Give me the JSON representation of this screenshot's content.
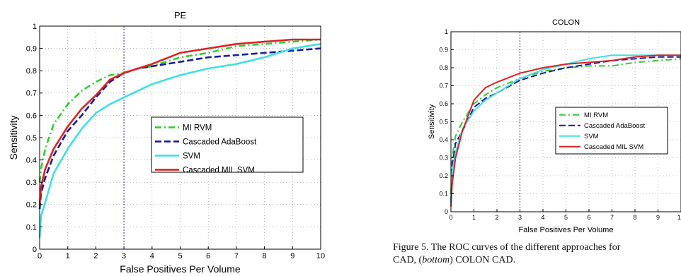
{
  "chart_data": [
    {
      "type": "line",
      "title": "PE",
      "xlabel": "False Positives Per Volume",
      "ylabel": "Sensitivity",
      "xlim": [
        0,
        10
      ],
      "ylim": [
        0,
        1
      ],
      "xticks": [
        "0",
        "1",
        "2",
        "3",
        "4",
        "5",
        "6",
        "7",
        "8",
        "9",
        "10"
      ],
      "yticks": [
        "0",
        "0.1",
        "0.2",
        "0.3",
        "0.4",
        "0.5",
        "0.6",
        "0.7",
        "0.8",
        "0.9",
        "1"
      ],
      "grid": true,
      "vline_x": 3,
      "legend_position": "center-right",
      "series": [
        {
          "name": "MI RVM",
          "color": "#33cc33",
          "style": "dashdot",
          "x": [
            0,
            0.05,
            0.2,
            0.5,
            1,
            1.5,
            2,
            2.5,
            3,
            3.5,
            4,
            5,
            6,
            7,
            8,
            9,
            10
          ],
          "y": [
            0.3,
            0.36,
            0.45,
            0.56,
            0.65,
            0.71,
            0.75,
            0.78,
            0.79,
            0.81,
            0.82,
            0.86,
            0.88,
            0.91,
            0.92,
            0.93,
            0.94
          ]
        },
        {
          "name": "Cascaded AdaBoost",
          "color": "#1a1aa0",
          "style": "dashed",
          "x": [
            0,
            0.05,
            0.2,
            0.5,
            1,
            1.5,
            2,
            2.5,
            3,
            3.5,
            4,
            5,
            6,
            7,
            8,
            9,
            10
          ],
          "y": [
            0.18,
            0.25,
            0.32,
            0.42,
            0.53,
            0.6,
            0.68,
            0.75,
            0.79,
            0.81,
            0.82,
            0.84,
            0.86,
            0.87,
            0.88,
            0.89,
            0.9
          ]
        },
        {
          "name": "SVM",
          "color": "#40e0e0",
          "style": "solid",
          "x": [
            0,
            0.05,
            0.2,
            0.5,
            1,
            1.5,
            2,
            2.5,
            3,
            3.5,
            4,
            5,
            6,
            7,
            8,
            9,
            10
          ],
          "y": [
            0.05,
            0.15,
            0.21,
            0.34,
            0.45,
            0.54,
            0.61,
            0.65,
            0.68,
            0.71,
            0.74,
            0.78,
            0.81,
            0.83,
            0.86,
            0.9,
            0.92
          ]
        },
        {
          "name": "Cascaded MIL SVM",
          "color": "#dd2222",
          "style": "solid",
          "x": [
            0,
            0.05,
            0.2,
            0.5,
            1,
            1.5,
            2,
            2.5,
            3,
            3.5,
            4,
            5,
            6,
            7,
            8,
            9,
            10
          ],
          "y": [
            0.2,
            0.28,
            0.36,
            0.45,
            0.55,
            0.63,
            0.69,
            0.76,
            0.79,
            0.81,
            0.83,
            0.88,
            0.9,
            0.92,
            0.93,
            0.94,
            0.94
          ]
        }
      ]
    },
    {
      "type": "line",
      "title": "COLON",
      "xlabel": "False Positives Per Volume",
      "ylabel": "Sensitivity",
      "xlim": [
        0,
        10
      ],
      "ylim": [
        0,
        1
      ],
      "xticks": [
        "0",
        "1",
        "2",
        "3",
        "4",
        "5",
        "6",
        "7",
        "8",
        "9",
        "10"
      ],
      "yticks": [
        "0",
        "0.1",
        "0.2",
        "0.3",
        "0.4",
        "0.5",
        "0.6",
        "0.7",
        "0.8",
        "0.9",
        "1"
      ],
      "grid": true,
      "vline_x": 3,
      "legend_position": "center-right",
      "series": [
        {
          "name": "MI RVM",
          "color": "#33cc33",
          "style": "dashdot",
          "x": [
            0,
            0.05,
            0.2,
            0.5,
            1,
            1.5,
            2,
            3,
            4,
            5,
            6,
            7,
            8,
            9,
            10
          ],
          "y": [
            0.1,
            0.3,
            0.42,
            0.5,
            0.6,
            0.65,
            0.69,
            0.74,
            0.78,
            0.8,
            0.81,
            0.81,
            0.83,
            0.84,
            0.85
          ]
        },
        {
          "name": "Cascaded AdaBoost",
          "color": "#1a1aa0",
          "style": "dashed",
          "x": [
            0,
            0.05,
            0.2,
            0.5,
            1,
            1.5,
            2,
            3,
            4,
            5,
            6,
            7,
            8,
            9,
            10
          ],
          "y": [
            0.05,
            0.25,
            0.38,
            0.45,
            0.58,
            0.63,
            0.66,
            0.73,
            0.77,
            0.8,
            0.82,
            0.84,
            0.85,
            0.86,
            0.86
          ]
        },
        {
          "name": "SVM",
          "color": "#40e0e0",
          "style": "solid",
          "x": [
            0,
            0.05,
            0.2,
            0.5,
            1,
            1.5,
            2,
            3,
            4,
            5,
            6,
            7,
            8,
            9,
            10
          ],
          "y": [
            0.05,
            0.22,
            0.33,
            0.46,
            0.56,
            0.62,
            0.66,
            0.74,
            0.79,
            0.82,
            0.85,
            0.87,
            0.87,
            0.87,
            0.87
          ]
        },
        {
          "name": "Cascaded MIL SVM",
          "color": "#dd2222",
          "style": "solid",
          "x": [
            0,
            0.05,
            0.2,
            0.5,
            1,
            1.5,
            2,
            3,
            4,
            5,
            6,
            7,
            8,
            9,
            10
          ],
          "y": [
            0.03,
            0.15,
            0.3,
            0.45,
            0.62,
            0.69,
            0.72,
            0.77,
            0.8,
            0.82,
            0.83,
            0.84,
            0.86,
            0.87,
            0.87
          ]
        }
      ]
    }
  ],
  "caption": {
    "line1": "Figure 5. The ROC curves of the different approaches for",
    "line2_prefix": "CAD, (",
    "line2_emph": "bottom",
    "line2_suffix": ") COLON CAD."
  }
}
